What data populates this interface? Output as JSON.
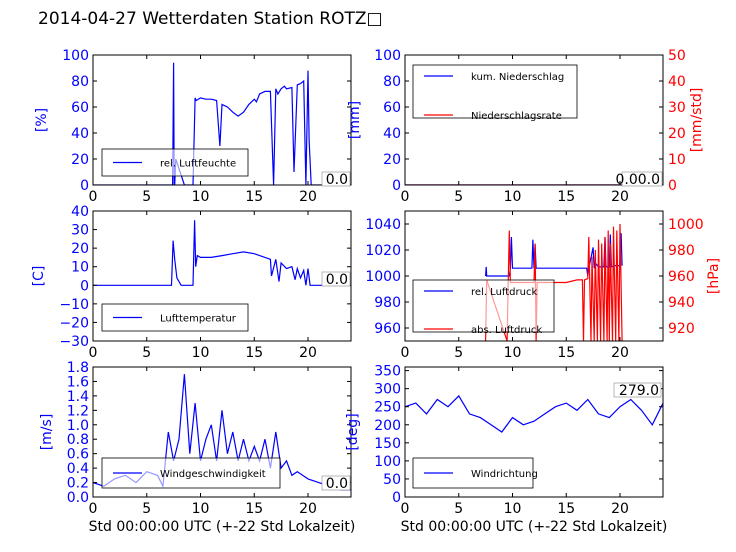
{
  "title": "2014-04-27 Wetterdaten Station ROTZ□",
  "colors": {
    "primary": "#0000ff",
    "secondary": "#ff0000",
    "axis": "#000000"
  },
  "chart_data": [
    {
      "id": "humidity",
      "type": "line",
      "ylabel": "[%]",
      "xlabel": "",
      "xlim": [
        0,
        24
      ],
      "ylim": [
        0,
        100
      ],
      "xticks": [
        "0",
        "5",
        "10",
        "15",
        "20"
      ],
      "yticks": [
        "0",
        "20",
        "40",
        "60",
        "80",
        "100"
      ],
      "current_value": "0.0",
      "legend": "bottom-left",
      "series": [
        {
          "name": "rel. Luftfeuchte",
          "color": "#0000ff",
          "x": [
            0,
            7.4,
            7.5,
            7.55,
            7.6,
            7.7,
            8.5,
            9.3,
            9.5,
            9.6,
            10,
            10.5,
            11,
            11.5,
            11.8,
            12,
            12.5,
            13,
            13.5,
            14,
            14.5,
            15,
            15.2,
            15.5,
            16,
            16.5,
            16.8,
            17,
            17.2,
            17.5,
            17.8,
            18,
            18.5,
            18.7,
            19,
            19.3,
            19.6,
            19.8,
            20,
            20.1,
            20.3,
            24
          ],
          "y": [
            0,
            0,
            94,
            0,
            0,
            20,
            0,
            0,
            67,
            65,
            67,
            66,
            66,
            65,
            30,
            62,
            60,
            56,
            53,
            56,
            62,
            66,
            64,
            70,
            72,
            72,
            0,
            74,
            70,
            74,
            76,
            74,
            75,
            10,
            77,
            78,
            80,
            0,
            88,
            35,
            0,
            0
          ]
        }
      ]
    },
    {
      "id": "precip",
      "type": "line",
      "ylabel": "[mm]",
      "ylabel2": "[mm/std]",
      "xlabel": "",
      "xlim": [
        0,
        24
      ],
      "ylim": [
        0,
        100
      ],
      "ylim2": [
        0,
        50
      ],
      "xticks": [
        "0",
        "5",
        "10",
        "15",
        "20"
      ],
      "yticks": [
        "0",
        "20",
        "40",
        "60",
        "80",
        "100"
      ],
      "yticks2": [
        "0",
        "10",
        "20",
        "30",
        "40",
        "50"
      ],
      "current_value": "0.0",
      "current_value2": "0.0",
      "legend": "top-left",
      "series": [
        {
          "name": "kum. Niederschlag",
          "color": "#0000ff",
          "x": [
            0,
            24
          ],
          "y": [
            0,
            0
          ]
        },
        {
          "name": "Niederschlagsrate",
          "color": "#ff0000",
          "axis": "right",
          "x": [
            0,
            24
          ],
          "y": [
            0,
            0
          ]
        }
      ]
    },
    {
      "id": "temperature",
      "type": "line",
      "ylabel": "[C]",
      "xlabel": "",
      "xlim": [
        0,
        24
      ],
      "ylim": [
        -30,
        40
      ],
      "xticks": [
        "0",
        "5",
        "10",
        "15",
        "20"
      ],
      "yticks": [
        "−30",
        "−20",
        "−10",
        "0",
        "10",
        "20",
        "30",
        "40"
      ],
      "current_value": "0.0",
      "legend": "bottom-left",
      "series": [
        {
          "name": "Lufttemperatur",
          "color": "#0000ff",
          "x": [
            0,
            7.3,
            7.45,
            7.6,
            7.8,
            8.2,
            9.3,
            9.45,
            9.55,
            9.7,
            10,
            11,
            12,
            13,
            14,
            15,
            15.5,
            16,
            16.5,
            16.6,
            17,
            17.3,
            17.5,
            18,
            18.5,
            18.8,
            19,
            19.3,
            19.6,
            19.8,
            20,
            20.2,
            24
          ],
          "y": [
            0,
            0,
            24,
            14,
            4,
            0,
            0,
            35,
            10,
            16,
            15,
            15,
            16,
            17,
            18,
            17,
            16,
            15,
            14,
            5,
            14,
            2,
            12,
            9,
            10,
            3,
            9,
            4,
            8,
            0,
            9,
            0,
            0
          ]
        }
      ]
    },
    {
      "id": "pressure",
      "type": "line",
      "ylabel": "",
      "ylabel2": "[hPa]",
      "xlabel": "",
      "xlim": [
        0,
        24
      ],
      "ylim": [
        950,
        1050
      ],
      "ylim2": [
        910,
        1010
      ],
      "xticks": [
        "0",
        "5",
        "10",
        "15",
        "20"
      ],
      "yticks": [
        "960",
        "980",
        "1000",
        "1020",
        "1040"
      ],
      "yticks2": [
        "920",
        "940",
        "960",
        "980",
        "1000"
      ],
      "legend": "bottom-left",
      "series": [
        {
          "name": "rel. Luftdruck",
          "color": "#0000ff",
          "x": [
            7.5,
            7.55,
            7.6,
            9.7,
            9.8,
            9.9,
            10.0,
            11.8,
            11.9,
            12.0,
            12.1,
            12.2,
            13,
            14,
            15,
            16.9,
            17.0,
            17.1,
            17.5,
            17.6,
            17.7,
            18,
            18.5,
            18.6,
            18.7,
            19,
            19.1,
            19.2,
            19.5,
            20,
            20.1,
            20.2
          ],
          "y": [
            1000,
            1007,
            1000,
            1000,
            1006,
            1030,
            1006,
            1006,
            1028,
            1006,
            1024,
            1006,
            1006,
            1006,
            1006,
            1006,
            1000,
            1006,
            1022,
            1006,
            1010,
            1007,
            1007,
            1030,
            1007,
            1007,
            1032,
            1007,
            1008,
            1008,
            1033,
            1008
          ]
        },
        {
          "name": "abs. Luftdruck",
          "color": "#ff0000",
          "axis": "right",
          "x": [
            7.5,
            7.6,
            9.5,
            9.6,
            9.7,
            9.8,
            10,
            11,
            12,
            12.1,
            12.2,
            12.3,
            13,
            13.5,
            14,
            15,
            16,
            16.5,
            16.6,
            16.7,
            17,
            17.1,
            17.3,
            17.4,
            17.6,
            17.7,
            17.9,
            18,
            18.2,
            18.3,
            18.5,
            18.6,
            18.8,
            18.9,
            19,
            19.1,
            19.3,
            19.4,
            19.6,
            19.7,
            19.9,
            20,
            20.2,
            20.3
          ],
          "y": [
            910,
            957,
            910,
            955,
            995,
            955,
            955,
            955,
            955,
            985,
            910,
            955,
            955,
            955,
            955,
            955,
            957,
            957,
            910,
            957,
            958,
            990,
            910,
            975,
            910,
            980,
            910,
            988,
            910,
            985,
            910,
            990,
            910,
            995,
            910,
            985,
            910,
            998,
            910,
            995,
            910,
            1000,
            910,
            910
          ]
        }
      ]
    },
    {
      "id": "wind_speed",
      "type": "line",
      "ylabel": "[m/s]",
      "xlabel": "Std 00:00:00 UTC (+-22 Std Lokalzeit)",
      "xlim": [
        0,
        24
      ],
      "ylim": [
        0,
        1.8
      ],
      "xticks": [
        "0",
        "5",
        "10",
        "15",
        "20"
      ],
      "yticks": [
        "0.0",
        "0.2",
        "0.4",
        "0.6",
        "0.8",
        "1.0",
        "1.2",
        "1.4",
        "1.6",
        "1.8"
      ],
      "current_value": "0.0",
      "legend": "bottom-left",
      "series": [
        {
          "name": "Windgeschwindigkeit",
          "color": "#0000ff",
          "x": [
            0,
            1,
            2,
            3,
            4,
            5,
            6,
            6.5,
            7,
            7.5,
            8,
            8.5,
            9,
            9.5,
            10,
            10.5,
            11,
            11.5,
            12,
            12.5,
            13,
            13.5,
            14,
            14.5,
            15,
            15.5,
            16,
            16.5,
            17,
            17.5,
            18,
            18.5,
            19,
            19.5,
            20,
            21,
            22,
            23,
            24
          ],
          "y": [
            0.2,
            0.15,
            0.25,
            0.3,
            0.2,
            0.35,
            0.3,
            0.15,
            0.9,
            0.5,
            0.8,
            1.7,
            0.6,
            1.3,
            0.5,
            0.8,
            1.0,
            0.5,
            1.2,
            0.6,
            0.9,
            0.5,
            0.8,
            0.5,
            0.7,
            0.5,
            0.8,
            0.4,
            0.9,
            0.4,
            0.5,
            0.3,
            0.35,
            0.3,
            0.25,
            0.2,
            0.15,
            0.1,
            0.1
          ]
        }
      ]
    },
    {
      "id": "wind_dir",
      "type": "line",
      "ylabel": "[deg]",
      "xlabel": "Std 00:00:00 UTC (+-22 Std Lokalzeit)",
      "xlim": [
        0,
        24
      ],
      "ylim": [
        0,
        360
      ],
      "xticks": [
        "0",
        "5",
        "10",
        "15",
        "20"
      ],
      "yticks": [
        "0",
        "50",
        "100",
        "150",
        "200",
        "250",
        "300",
        "350"
      ],
      "current_value": "279.0",
      "legend": "bottom-left",
      "series": [
        {
          "name": "Windrichtung",
          "color": "#0000ff",
          "x": [
            0,
            1,
            2,
            3,
            4,
            5,
            6,
            7,
            8,
            9,
            10,
            11,
            12,
            13,
            14,
            15,
            16,
            17,
            18,
            19,
            20,
            21,
            22,
            23,
            24
          ],
          "y": [
            250,
            260,
            230,
            270,
            250,
            280,
            230,
            220,
            200,
            180,
            220,
            200,
            210,
            230,
            250,
            260,
            240,
            270,
            230,
            220,
            250,
            270,
            240,
            200,
            260
          ]
        }
      ]
    }
  ]
}
